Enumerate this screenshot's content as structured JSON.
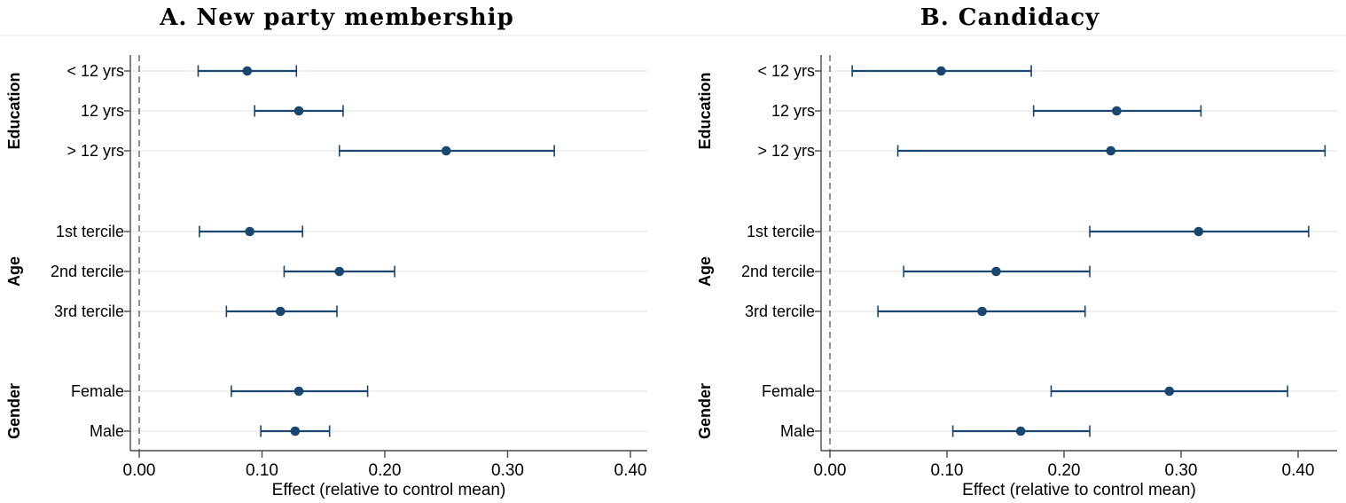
{
  "figure": {
    "background": "#ffffff",
    "marker_color": "#1a476f",
    "grid_color": "#e8e8e8",
    "axis_color": "#4a4a4a",
    "zero_line_color": "#555555",
    "top_border_color": "#e4e4e4",
    "text_color": "#000000"
  },
  "chart_data": [
    {
      "type": "scatter",
      "title": "A. New party membership",
      "xlabel": "Effect (relative to control mean)",
      "xlim": [
        -0.03,
        0.435
      ],
      "zero_line": 0,
      "grid": true,
      "x_ticks": [
        {
          "value": 0.0,
          "label": "0.00"
        },
        {
          "value": 0.1,
          "label": "0.10"
        },
        {
          "value": 0.2,
          "label": "0.20"
        },
        {
          "value": 0.3,
          "label": "0.30"
        },
        {
          "value": 0.4,
          "label": "0.40"
        }
      ],
      "groups": [
        {
          "label": "Education",
          "rows": [
            {
              "label": "< 12 yrs",
              "estimate": 0.088,
              "ci_low": 0.048,
              "ci_high": 0.128
            },
            {
              "label": "12 yrs",
              "estimate": 0.13,
              "ci_low": 0.094,
              "ci_high": 0.166
            },
            {
              "label": "> 12 yrs",
              "estimate": 0.25,
              "ci_low": 0.163,
              "ci_high": 0.338
            }
          ]
        },
        {
          "label": "Age",
          "rows": [
            {
              "label": "1st tercile",
              "estimate": 0.09,
              "ci_low": 0.049,
              "ci_high": 0.133
            },
            {
              "label": "2nd tercile",
              "estimate": 0.163,
              "ci_low": 0.118,
              "ci_high": 0.208
            },
            {
              "label": "3rd tercile",
              "estimate": 0.115,
              "ci_low": 0.071,
              "ci_high": 0.161
            }
          ]
        },
        {
          "label": "Gender",
          "rows": [
            {
              "label": "Female",
              "estimate": 0.13,
              "ci_low": 0.075,
              "ci_high": 0.186
            },
            {
              "label": "Male",
              "estimate": 0.127,
              "ci_low": 0.099,
              "ci_high": 0.155
            }
          ]
        }
      ]
    },
    {
      "type": "scatter",
      "title": "B. Candidacy",
      "xlabel": "Effect (relative to control mean)",
      "xlim": [
        -0.03,
        0.435
      ],
      "zero_line": 0,
      "grid": true,
      "x_ticks": [
        {
          "value": 0.0,
          "label": "0.00"
        },
        {
          "value": 0.1,
          "label": "0.10"
        },
        {
          "value": 0.2,
          "label": "0.20"
        },
        {
          "value": 0.3,
          "label": "0.30"
        },
        {
          "value": 0.4,
          "label": "0.40"
        }
      ],
      "groups": [
        {
          "label": "Education",
          "rows": [
            {
              "label": "< 12 yrs",
              "estimate": 0.095,
              "ci_low": 0.019,
              "ci_high": 0.172
            },
            {
              "label": "12 yrs",
              "estimate": 0.245,
              "ci_low": 0.174,
              "ci_high": 0.317
            },
            {
              "label": "> 12 yrs",
              "estimate": 0.24,
              "ci_low": 0.058,
              "ci_high": 0.423
            }
          ]
        },
        {
          "label": "Age",
          "rows": [
            {
              "label": "1st tercile",
              "estimate": 0.315,
              "ci_low": 0.222,
              "ci_high": 0.409
            },
            {
              "label": "2nd tercile",
              "estimate": 0.142,
              "ci_low": 0.063,
              "ci_high": 0.222
            },
            {
              "label": "3rd tercile",
              "estimate": 0.13,
              "ci_low": 0.041,
              "ci_high": 0.218
            }
          ]
        },
        {
          "label": "Gender",
          "rows": [
            {
              "label": "Female",
              "estimate": 0.29,
              "ci_low": 0.189,
              "ci_high": 0.391
            },
            {
              "label": "Male",
              "estimate": 0.163,
              "ci_low": 0.105,
              "ci_high": 0.222
            }
          ]
        }
      ]
    }
  ]
}
